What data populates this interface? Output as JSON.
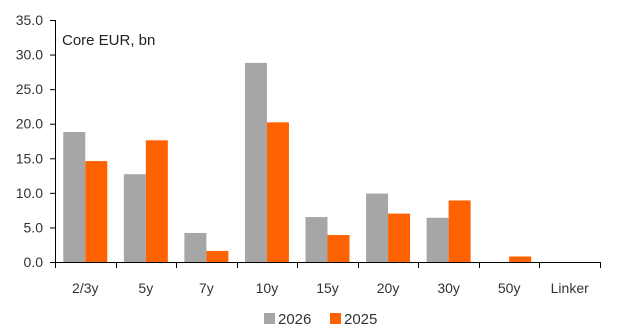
{
  "chart_data": {
    "type": "bar",
    "annotation": "Core EUR, bn",
    "categories": [
      "2/3y",
      "5y",
      "7y",
      "10y",
      "15y",
      "20y",
      "30y",
      "50y",
      "Linker"
    ],
    "series": [
      {
        "name": "2026",
        "color": "#a6a6a6",
        "values": [
          18.8,
          12.7,
          4.2,
          28.8,
          6.5,
          9.9,
          6.4,
          0,
          0
        ]
      },
      {
        "name": "2025",
        "color": "#ff6200",
        "values": [
          14.6,
          17.6,
          1.6,
          20.2,
          3.9,
          7.0,
          8.9,
          0.8,
          0
        ]
      }
    ],
    "ylim": [
      0,
      35
    ],
    "yticks": [
      "0.0",
      "5.0",
      "10.0",
      "15.0",
      "20.0",
      "25.0",
      "30.0",
      "35.0"
    ],
    "grid": false,
    "legend": "bottom-center"
  }
}
